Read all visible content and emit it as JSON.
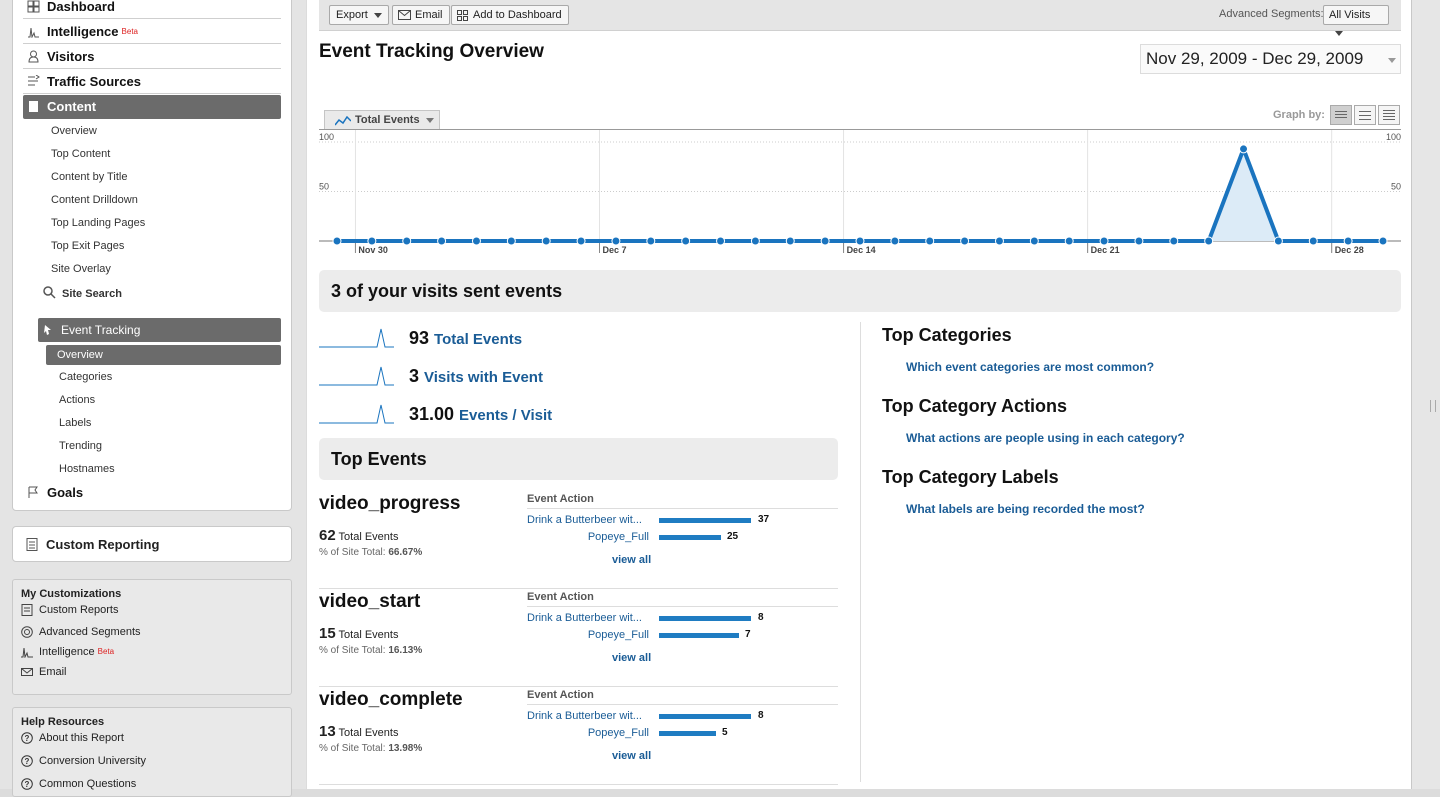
{
  "sidebar": {
    "nav": {
      "dashboard": "Dashboard",
      "intelligence": "Intelligence",
      "beta": "Beta",
      "visitors": "Visitors",
      "traffic_sources": "Traffic Sources",
      "content": "Content",
      "content_items": [
        "Overview",
        "Top Content",
        "Content by Title",
        "Content Drilldown",
        "Top Landing Pages",
        "Top Exit Pages",
        "Site Overlay"
      ],
      "site_search": "Site Search",
      "event_tracking": "Event Tracking",
      "event_items": [
        "Overview",
        "Categories",
        "Actions",
        "Labels",
        "Trending",
        "Hostnames"
      ],
      "goals": "Goals"
    },
    "custom_reporting": "Custom Reporting",
    "my_customizations": {
      "title": "My Customizations",
      "items": [
        "Custom Reports",
        "Advanced Segments",
        "Intelligence",
        "Email"
      ],
      "beta": "Beta"
    },
    "help": {
      "title": "Help Resources",
      "items": [
        "About this Report",
        "Conversion University",
        "Common Questions"
      ]
    }
  },
  "toolbar": {
    "export": "Export",
    "email": "Email",
    "add_to_dashboard": "Add to Dashboard",
    "segments_label": "Advanced Segments:",
    "segments_value": "All Visits"
  },
  "page_title": "Event Tracking Overview",
  "date_range": "Nov 29, 2009 - Dec 29, 2009",
  "chart_tab": "Total Events",
  "graph_by": "Graph by:",
  "chart_data": {
    "type": "area",
    "x": [
      "Nov 29",
      "Nov 30",
      "Dec 1",
      "Dec 2",
      "Dec 3",
      "Dec 4",
      "Dec 5",
      "Dec 6",
      "Dec 7",
      "Dec 8",
      "Dec 9",
      "Dec 10",
      "Dec 11",
      "Dec 12",
      "Dec 13",
      "Dec 14",
      "Dec 15",
      "Dec 16",
      "Dec 17",
      "Dec 18",
      "Dec 19",
      "Dec 20",
      "Dec 21",
      "Dec 22",
      "Dec 23",
      "Dec 24",
      "Dec 25",
      "Dec 26",
      "Dec 27",
      "Dec 28",
      "Dec 29"
    ],
    "values": [
      0,
      0,
      0,
      0,
      0,
      0,
      0,
      0,
      0,
      0,
      0,
      0,
      0,
      0,
      0,
      0,
      0,
      0,
      0,
      0,
      0,
      0,
      0,
      0,
      0,
      0,
      93,
      0,
      0,
      0,
      0
    ],
    "xticks": [
      "Nov 30",
      "Dec 7",
      "Dec 14",
      "Dec 21",
      "Dec 28"
    ],
    "yticks": [
      50,
      100
    ],
    "ylim": [
      0,
      100
    ],
    "grid": true,
    "series": [
      {
        "name": "Total Events",
        "color": "#1a74bf"
      }
    ]
  },
  "summary_title": "3 of your visits sent events",
  "metrics": [
    {
      "value": "93",
      "label": "Total Events"
    },
    {
      "value": "3",
      "label": "Visits with Event"
    },
    {
      "value": "31.00",
      "label": "Events / Visit"
    }
  ],
  "top_events_title": "Top Events",
  "event_action_header": "Event Action",
  "total_events_suffix": "Total Events",
  "pct_label": "% of Site Total:",
  "view_all": "view all",
  "events": [
    {
      "name": "video_progress",
      "total": "62",
      "pct": "66.67%",
      "actions": [
        {
          "label": "Drink a Butterbeer wit...",
          "value": 37
        },
        {
          "label": "Popeye_Full",
          "value": 25
        }
      ]
    },
    {
      "name": "video_start",
      "total": "15",
      "pct": "16.13%",
      "actions": [
        {
          "label": "Drink a Butterbeer wit...",
          "value": 8
        },
        {
          "label": "Popeye_Full",
          "value": 7
        }
      ]
    },
    {
      "name": "video_complete",
      "total": "13",
      "pct": "13.98%",
      "actions": [
        {
          "label": "Drink a Butterbeer wit...",
          "value": 8
        },
        {
          "label": "Popeye_Full",
          "value": 5
        }
      ]
    }
  ],
  "categories": [
    {
      "title": "Top Categories",
      "link": "Which event categories are most common?"
    },
    {
      "title": "Top Category Actions",
      "link": "What actions are people using in each category?"
    },
    {
      "title": "Top Category Labels",
      "link": "What labels are being recorded the most?"
    }
  ]
}
